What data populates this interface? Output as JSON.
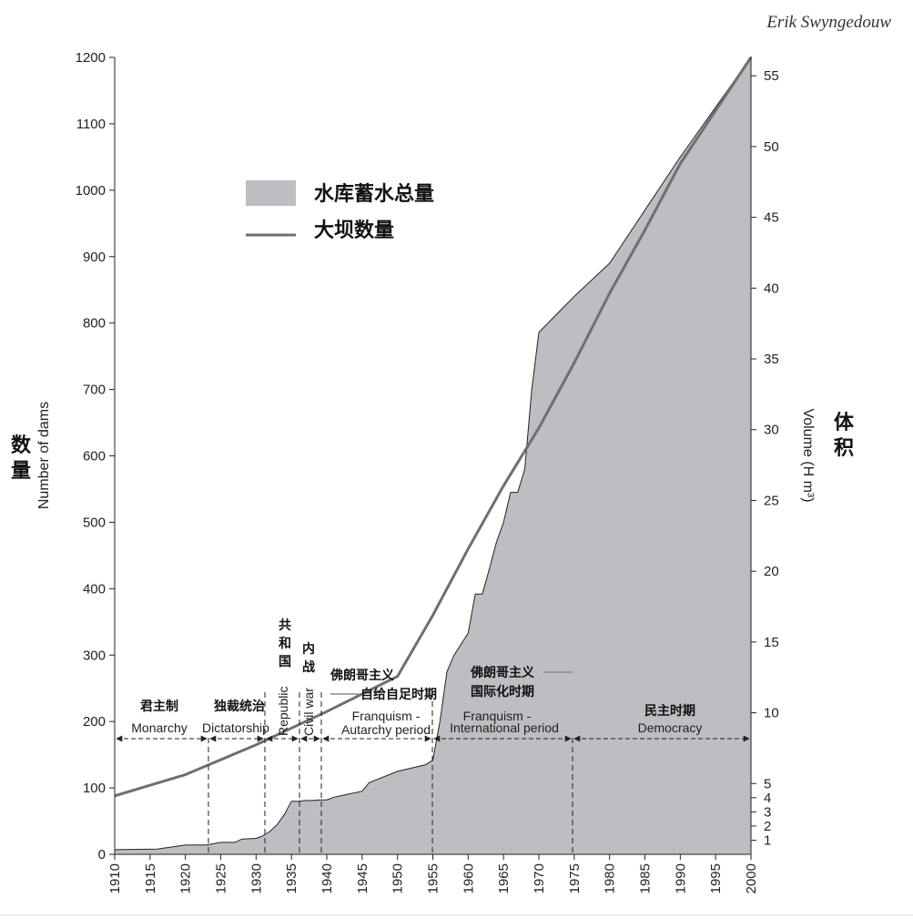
{
  "header": {
    "author": "Erik Swyngedouw"
  },
  "chart_data": {
    "type": "area",
    "x_axis": {
      "range": [
        1910,
        2000
      ],
      "ticks": [
        "1910",
        "1915",
        "1920",
        "1925",
        "1930",
        "1935",
        "1940",
        "1945",
        "1950",
        "1955",
        "1960",
        "1965",
        "1970",
        "1975",
        "1980",
        "1985",
        "1990",
        "1995",
        "2000"
      ]
    },
    "y_left": {
      "label_cn": "数量",
      "label_en": "Number of dams",
      "range": [
        0,
        1200
      ],
      "ticks": [
        "0",
        "100",
        "200",
        "300",
        "400",
        "500",
        "600",
        "700",
        "800",
        "900",
        "1000",
        "1100",
        "1200"
      ]
    },
    "y_right": {
      "label_cn": "体积",
      "label_en": "Volume (H m³)",
      "range": [
        0,
        56.3
      ],
      "ticks": [
        "1",
        "2",
        "3",
        "4",
        "5",
        "10",
        "15",
        "20",
        "25",
        "30",
        "35",
        "40",
        "45",
        "50",
        "55"
      ]
    },
    "legend": {
      "placement": "top-left",
      "items": [
        {
          "label": "水库蓄水总量",
          "kind": "area",
          "color": "#bdbec2"
        },
        {
          "label": "大坝数量",
          "kind": "line",
          "color": "#6f6f72"
        }
      ]
    },
    "series": [
      {
        "label": "水库蓄水总量",
        "axis": "left",
        "x": [
          1910,
          1916,
          1920,
          1923,
          1925,
          1927,
          1928,
          1930,
          1931,
          1932,
          1933,
          1934,
          1935,
          1936,
          1937,
          1938,
          1939,
          1940,
          1941,
          1945,
          1946,
          1950,
          1954,
          1955,
          1956,
          1957,
          1958,
          1960,
          1961,
          1962,
          1963,
          1964,
          1965,
          1966,
          1967,
          1968,
          1969,
          1970,
          1975,
          1980,
          1985,
          1990,
          1995,
          2000
        ],
        "y": [
          7,
          8,
          14,
          14,
          18,
          18,
          23,
          24,
          28,
          35,
          45,
          60,
          80,
          80,
          81,
          81,
          82,
          82,
          86,
          95,
          108,
          125,
          135,
          142,
          200,
          275,
          300,
          333,
          392,
          392,
          430,
          470,
          500,
          545,
          545,
          580,
          700,
          786,
          840,
          890,
          970,
          1050,
          1125,
          1200
        ]
      },
      {
        "label": "大坝数量",
        "axis": "left",
        "x": [
          1910,
          1920,
          1930,
          1940,
          1950,
          1955,
          1960,
          1965,
          1970,
          1975,
          1980,
          1985,
          1990,
          1995,
          2000
        ],
        "y": [
          88,
          120,
          165,
          215,
          268,
          360,
          460,
          555,
          642,
          740,
          845,
          940,
          1040,
          1120,
          1200
        ]
      }
    ],
    "periods": [
      {
        "cn": "君主制",
        "en": "Monarchy",
        "start": 1910,
        "end": 1923
      },
      {
        "cn": "独裁统治",
        "en": "Dictatorship",
        "start": 1923,
        "end": 1931
      },
      {
        "cn": "共和国",
        "en": "Republic",
        "start": 1931,
        "end": 1936
      },
      {
        "cn": "内战",
        "en": "Civil war",
        "start": 1936,
        "end": 1939
      },
      {
        "cn": "佛朗哥主义——自给自足时期",
        "en": "Franquism - Autarchy period",
        "start": 1939,
        "end": 1955
      },
      {
        "cn": "佛朗哥主义——国际化时期",
        "en": "Franquism - International period",
        "start": 1955,
        "end": 1975
      },
      {
        "cn": "民主时期",
        "en": "Democracy",
        "start": 1975,
        "end": 2000
      }
    ],
    "period_labels": {
      "monarchy_cn": "君主制",
      "monarchy_en": "Monarchy",
      "dictatorship_cn": "独裁统治",
      "dictatorship_en": "Dictatorship",
      "republic_cn_1": "共",
      "republic_cn_2": "和",
      "republic_cn_3": "国",
      "republic_en": "Republic",
      "civilwar_cn_1": "内",
      "civilwar_cn_2": "战",
      "civilwar_en": "Civil war",
      "autarchy_cn_1": "佛朗哥主义",
      "autarchy_cn_2": "自给自足时期",
      "autarchy_en_1": "Franquism -",
      "autarchy_en_2": "Autarchy period",
      "intl_cn_1": "佛朗哥主义",
      "intl_cn_2": "国际化时期",
      "intl_en_1": "Franquism -",
      "intl_en_2": "International period",
      "democracy_cn": "民主时期",
      "democracy_en": "Democracy"
    }
  }
}
